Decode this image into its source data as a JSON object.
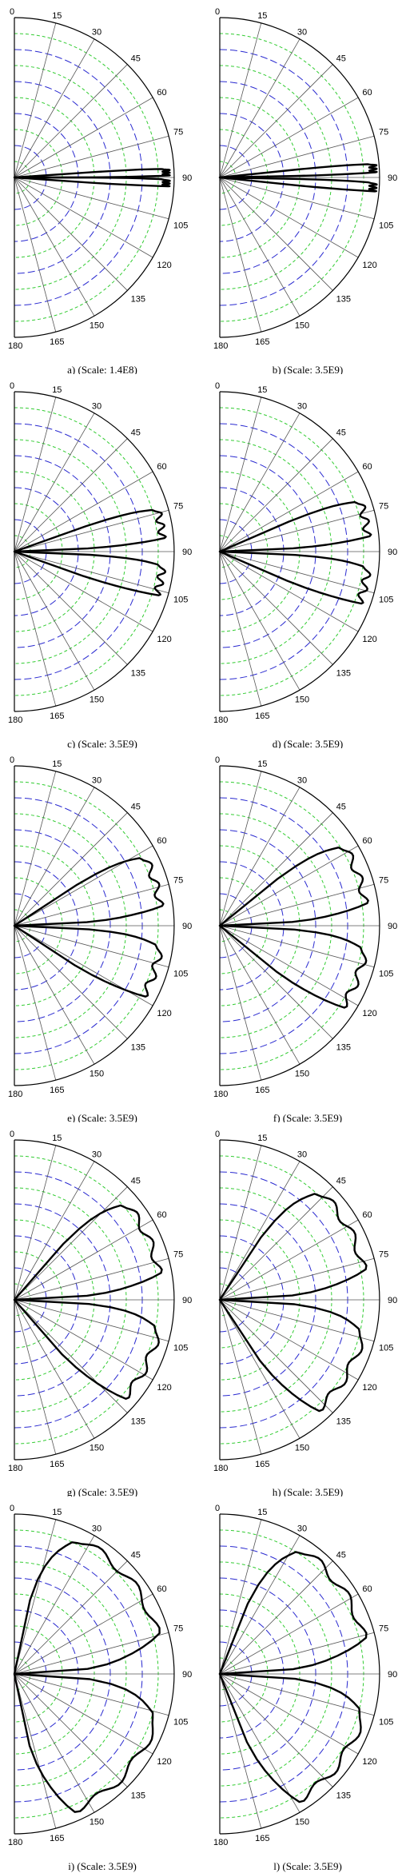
{
  "chart_data": [
    {
      "type": "polar",
      "caption": "a) (Scale: 1.4E8)",
      "angle_ticks": [
        "0",
        "15",
        "30",
        "45",
        "60",
        "75",
        "90",
        "105",
        "120",
        "135",
        "150",
        "165",
        "180"
      ],
      "lobes": [
        {
          "start_deg": 86,
          "end_deg": 90,
          "radius": 0.95
        },
        {
          "start_deg": 90,
          "end_deg": 94,
          "radius": 0.95
        }
      ],
      "grid": true
    },
    {
      "type": "polar",
      "caption": "b) (Scale: 3.5E9)",
      "angle_ticks": [
        "0",
        "15",
        "30",
        "45",
        "60",
        "75",
        "90",
        "105",
        "120",
        "135",
        "150",
        "165",
        "180"
      ],
      "lobes": [
        {
          "start_deg": 84,
          "end_deg": 89,
          "radius": 0.96
        },
        {
          "start_deg": 91,
          "end_deg": 96,
          "radius": 0.96
        }
      ],
      "grid": true
    },
    {
      "type": "polar",
      "caption": "c) (Scale: 3.5E9)",
      "angle_ticks": [
        "0",
        "15",
        "30",
        "45",
        "60",
        "75",
        "90",
        "105",
        "120",
        "135",
        "150",
        "165",
        "180"
      ],
      "lobes": [
        {
          "start_deg": 70,
          "end_deg": 88,
          "radius": 0.93
        },
        {
          "start_deg": 92,
          "end_deg": 110,
          "radius": 0.93
        }
      ],
      "grid": true
    },
    {
      "type": "polar",
      "caption": "d) (Scale: 3.5E9)",
      "angle_ticks": [
        "0",
        "15",
        "30",
        "45",
        "60",
        "75",
        "90",
        "105",
        "120",
        "135",
        "150",
        "165",
        "180"
      ],
      "lobes": [
        {
          "start_deg": 66,
          "end_deg": 88,
          "radius": 0.93
        },
        {
          "start_deg": 92,
          "end_deg": 114,
          "radius": 0.93
        }
      ],
      "grid": true
    },
    {
      "type": "polar",
      "caption": "e) (Scale: 3.5E9)",
      "angle_ticks": [
        "0",
        "15",
        "30",
        "45",
        "60",
        "75",
        "90",
        "105",
        "120",
        "135",
        "150",
        "165",
        "180"
      ],
      "lobes": [
        {
          "start_deg": 56,
          "end_deg": 88,
          "radius": 0.92
        },
        {
          "start_deg": 92,
          "end_deg": 124,
          "radius": 0.92
        }
      ],
      "grid": true
    },
    {
      "type": "polar",
      "caption": "f) (Scale: 3.5E9)",
      "angle_ticks": [
        "0",
        "15",
        "30",
        "45",
        "60",
        "75",
        "90",
        "105",
        "120",
        "135",
        "150",
        "165",
        "180"
      ],
      "lobes": [
        {
          "start_deg": 50,
          "end_deg": 88,
          "radius": 0.92
        },
        {
          "start_deg": 92,
          "end_deg": 130,
          "radius": 0.92
        }
      ],
      "grid": true
    },
    {
      "type": "polar",
      "caption": "g) (Scale: 3.5E9)",
      "angle_ticks": [
        "0",
        "15",
        "30",
        "45",
        "60",
        "75",
        "90",
        "105",
        "120",
        "135",
        "150",
        "165",
        "180"
      ],
      "lobes": [
        {
          "start_deg": 40,
          "end_deg": 88,
          "radius": 0.92
        },
        {
          "start_deg": 92,
          "end_deg": 140,
          "radius": 0.92
        }
      ],
      "grid": true
    },
    {
      "type": "polar",
      "caption": "h) (Scale: 3.5E9)",
      "angle_ticks": [
        "0",
        "15",
        "30",
        "45",
        "60",
        "75",
        "90",
        "105",
        "120",
        "135",
        "150",
        "165",
        "180"
      ],
      "lobes": [
        {
          "start_deg": 32,
          "end_deg": 88,
          "radius": 0.92
        },
        {
          "start_deg": 92,
          "end_deg": 148,
          "radius": 0.92
        }
      ],
      "grid": true
    },
    {
      "type": "polar",
      "caption": "i) (Scale: 3.5E9)",
      "angle_ticks": [
        "0",
        "15",
        "30",
        "45",
        "60",
        "75",
        "90",
        "105",
        "120",
        "135",
        "150",
        "165",
        "180"
      ],
      "lobes": [
        {
          "start_deg": 10,
          "end_deg": 88,
          "radius": 0.93
        },
        {
          "start_deg": 92,
          "end_deg": 170,
          "radius": 0.93
        }
      ],
      "grid": true
    },
    {
      "type": "polar",
      "caption": "l) (Scale: 3.5E9)",
      "angle_ticks": [
        "0",
        "15",
        "30",
        "45",
        "60",
        "75",
        "90",
        "105",
        "120",
        "135",
        "150",
        "165",
        "180"
      ],
      "lobes": [
        {
          "start_deg": 20,
          "end_deg": 88,
          "radius": 0.93
        },
        {
          "start_deg": 92,
          "end_deg": 160,
          "radius": 0.93
        }
      ],
      "grid": true
    }
  ],
  "colors": {
    "frame": "#000000",
    "blue_dash": "#2a2ad0",
    "green_dash": "#33cc33",
    "radial": "#555555",
    "curve": "#000000"
  }
}
